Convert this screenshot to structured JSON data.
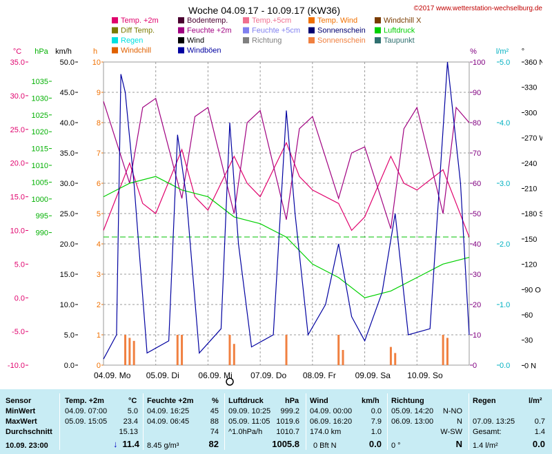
{
  "header": {
    "title": "Woche 04.09.17 - 10.09.17 (KW36)",
    "copyright": "©2017 www.wetterstation-wechselburg.de"
  },
  "legend": [
    {
      "label": "Temp. +2m",
      "color": "#e0006c"
    },
    {
      "label": "Bodentemp.",
      "color": "#4a0030"
    },
    {
      "label": "Temp.+5cm",
      "color": "#f07090"
    },
    {
      "label": "Temp. Wind",
      "color": "#f07000"
    },
    {
      "label": "Windchill X",
      "color": "#7a3c00"
    },
    {
      "label": "Diff Temp.",
      "color": "#7a7a00"
    },
    {
      "label": "Feuchte +2m",
      "color": "#a00080"
    },
    {
      "label": "Feuchte +5cm",
      "color": "#8080f0"
    },
    {
      "label": "Sonnenschein",
      "color": "#000070"
    },
    {
      "label": "Luftdruck",
      "color": "#00d000"
    },
    {
      "label": "Regen",
      "color": "#00e0e0"
    },
    {
      "label": "Wind",
      "color": "#000000"
    },
    {
      "label": "Richtung",
      "color": "#808080"
    },
    {
      "label": "Sonnenschein",
      "color": "#f08040"
    },
    {
      "label": "Taupunkt",
      "color": "#307070"
    },
    {
      "label": "Windchill",
      "color": "#e06000"
    },
    {
      "label": "Windböen",
      "color": "#0000a0"
    }
  ],
  "axes": {
    "temp": {
      "unit": "°C",
      "color": "#e0006c",
      "ticks": [
        "35.0",
        "30.0",
        "25.0",
        "20.0",
        "15.0",
        "10.0",
        "5.0",
        "0.0",
        "-5.0",
        "-10.0"
      ]
    },
    "hpa": {
      "unit": "hPa",
      "color": "#00b000",
      "ticks": [
        "1035",
        "1030",
        "1025",
        "1020",
        "1015",
        "1010",
        "1005",
        "1000",
        "995",
        "990"
      ]
    },
    "kmh": {
      "unit": "km/h",
      "color": "#000000",
      "ticks": [
        "50.0",
        "45.0",
        "40.0",
        "35.0",
        "30.0",
        "25.0",
        "20.0",
        "15.0",
        "10.0",
        "5.0",
        "0.0"
      ]
    },
    "h": {
      "unit": "h",
      "color": "#f07000",
      "ticks": [
        "10",
        "9",
        "8",
        "7",
        "6",
        "5",
        "4",
        "3",
        "2",
        "1",
        "0"
      ]
    },
    "pct": {
      "unit": "%",
      "color": "#800080",
      "ticks": [
        "100",
        "90",
        "80",
        "70",
        "60",
        "50",
        "40",
        "30",
        "20",
        "10",
        "0"
      ]
    },
    "lm2": {
      "unit": "l/m²",
      "color": "#00b0c0",
      "ticks": [
        "5.0",
        "4.0",
        "3.0",
        "2.0",
        "1.0",
        "0.0"
      ]
    },
    "deg": {
      "unit": "°",
      "color": "#000000",
      "ticks": [
        "360 N",
        "330",
        "300",
        "270 W",
        "240",
        "210",
        "180 S",
        "150",
        "120",
        "90 O",
        "60",
        "30",
        "0 N"
      ]
    },
    "days": [
      "04.09. Mo",
      "05.09. Di",
      "06.09. Mi",
      "07.09. Do",
      "08.09. Fr",
      "09.09. Sa",
      "10.09. So"
    ]
  },
  "chart_data": {
    "type": "line",
    "title": "Woche 04.09.17 - 10.09.17 (KW36)",
    "x_unit": "hours since 04.09. 00:00",
    "series": [
      {
        "name": "Temp. +2m",
        "unit": "°C",
        "points": [
          [
            0,
            10
          ],
          [
            12,
            20
          ],
          [
            18,
            14
          ],
          [
            24,
            12.5
          ],
          [
            36,
            22
          ],
          [
            42,
            15
          ],
          [
            48,
            13
          ],
          [
            60,
            21
          ],
          [
            66,
            17
          ],
          [
            72,
            15
          ],
          [
            84,
            23
          ],
          [
            90,
            18
          ],
          [
            96,
            16
          ],
          [
            108,
            14
          ],
          [
            114,
            10
          ],
          [
            120,
            12
          ],
          [
            132,
            21
          ],
          [
            138,
            17
          ],
          [
            144,
            16
          ],
          [
            156,
            19
          ],
          [
            162,
            14
          ],
          [
            168,
            9
          ]
        ]
      },
      {
        "name": "Feuchte +2m",
        "unit": "%",
        "points": [
          [
            0,
            87
          ],
          [
            12,
            60
          ],
          [
            18,
            85
          ],
          [
            24,
            88
          ],
          [
            36,
            55
          ],
          [
            42,
            82
          ],
          [
            48,
            85
          ],
          [
            60,
            50
          ],
          [
            66,
            80
          ],
          [
            72,
            84
          ],
          [
            84,
            48
          ],
          [
            90,
            78
          ],
          [
            96,
            82
          ],
          [
            108,
            55
          ],
          [
            114,
            70
          ],
          [
            120,
            72
          ],
          [
            132,
            45
          ],
          [
            138,
            78
          ],
          [
            144,
            85
          ],
          [
            156,
            50
          ],
          [
            162,
            85
          ],
          [
            168,
            80
          ]
        ]
      },
      {
        "name": "Luftdruck",
        "unit": "hPa",
        "points": [
          [
            0,
            1015
          ],
          [
            12,
            1017
          ],
          [
            24,
            1018
          ],
          [
            36,
            1016
          ],
          [
            48,
            1015
          ],
          [
            60,
            1012
          ],
          [
            72,
            1011
          ],
          [
            84,
            1009
          ],
          [
            96,
            1005
          ],
          [
            108,
            1003
          ],
          [
            120,
            1000
          ],
          [
            132,
            1001
          ],
          [
            144,
            1003
          ],
          [
            156,
            1005
          ],
          [
            168,
            1006
          ]
        ]
      },
      {
        "name": "Windböen",
        "unit": "km/h",
        "points": [
          [
            0,
            1
          ],
          [
            6,
            5
          ],
          [
            8,
            48
          ],
          [
            10,
            45
          ],
          [
            14,
            30
          ],
          [
            20,
            2
          ],
          [
            30,
            4
          ],
          [
            34,
            38
          ],
          [
            38,
            28
          ],
          [
            44,
            2
          ],
          [
            54,
            6
          ],
          [
            58,
            40
          ],
          [
            62,
            20
          ],
          [
            68,
            3
          ],
          [
            78,
            5
          ],
          [
            84,
            42
          ],
          [
            88,
            25
          ],
          [
            94,
            5
          ],
          [
            102,
            10
          ],
          [
            108,
            20
          ],
          [
            114,
            8
          ],
          [
            120,
            4
          ],
          [
            128,
            12
          ],
          [
            134,
            25
          ],
          [
            140,
            5
          ],
          [
            150,
            6
          ],
          [
            158,
            50
          ],
          [
            164,
            30
          ],
          [
            168,
            5
          ]
        ]
      },
      {
        "name": "Sonnenschein",
        "unit": "h",
        "points": [
          [
            10,
            1
          ],
          [
            12,
            0.9
          ],
          [
            14,
            0.8
          ],
          [
            34,
            1
          ],
          [
            36,
            1
          ],
          [
            58,
            1
          ],
          [
            60,
            0.7
          ],
          [
            84,
            1
          ],
          [
            108,
            1
          ],
          [
            110,
            0.5
          ],
          [
            132,
            0.6
          ],
          [
            134,
            0.4
          ],
          [
            156,
            1
          ],
          [
            158,
            0.9
          ]
        ]
      }
    ]
  },
  "table": {
    "headers": {
      "sensor": "Sensor",
      "temp": "Temp. +2m",
      "temp_unit": "°C",
      "feuchte": "Feuchte +2m",
      "feuchte_unit": "%",
      "luft": "Luftdruck",
      "luft_unit": "hPa",
      "wind": "Wind",
      "wind_unit": "km/h",
      "richtung": "Richtung",
      "regen": "Regen",
      "regen_unit": "l/m²"
    },
    "rows": [
      {
        "label": "MinWert",
        "temp_t": "04.09.  07:00",
        "temp_v": "5.0",
        "feu_t": "04.09.  16:25",
        "feu_v": "45",
        "luft_t": "09.09.  10:25",
        "luft_v": "999.2",
        "wind_t": "04.09.  00:00",
        "wind_v": "0.0",
        "ri_t": "05.09.  14:20",
        "ri_v": "N-NO",
        "re_t": "",
        "re_v": ""
      },
      {
        "label": "MaxWert",
        "temp_t": "05.09.  15:05",
        "temp_v": "23.4",
        "feu_t": "04.09.  06:45",
        "feu_v": "88",
        "luft_t": "05.09.  11:05",
        "luft_v": "1019.6",
        "wind_t": "06.09.  16:20",
        "wind_v": "7.9",
        "ri_t": "06.09.  13:00",
        "ri_v": "N",
        "re_t": "07.09.  13:25",
        "re_v": "0.7"
      },
      {
        "label": "Durchschnitt",
        "temp_t": "",
        "temp_v": "15.13",
        "feu_t": "",
        "feu_v": "74",
        "luft_t": "^1.0hPa/h",
        "luft_v": "1010.7",
        "wind_t": "174.0 km",
        "wind_v": "1.0",
        "ri_t": "",
        "ri_v": "W-SW",
        "re_t": "Gesamt:",
        "re_v": "1.4"
      }
    ],
    "current": {
      "label": "10.09.  23:00",
      "temp": "11.4",
      "temp_arrow": "↓",
      "feu_t": "8.45 g/m³",
      "feu_v": "82",
      "luft_v": "1005.8",
      "wind_t": "0 Bft N",
      "wind_v": "0.0",
      "ri_t": "0 °",
      "ri_v": "N",
      "re_t": "1.4 l/m²",
      "re_v": "0.0"
    }
  }
}
